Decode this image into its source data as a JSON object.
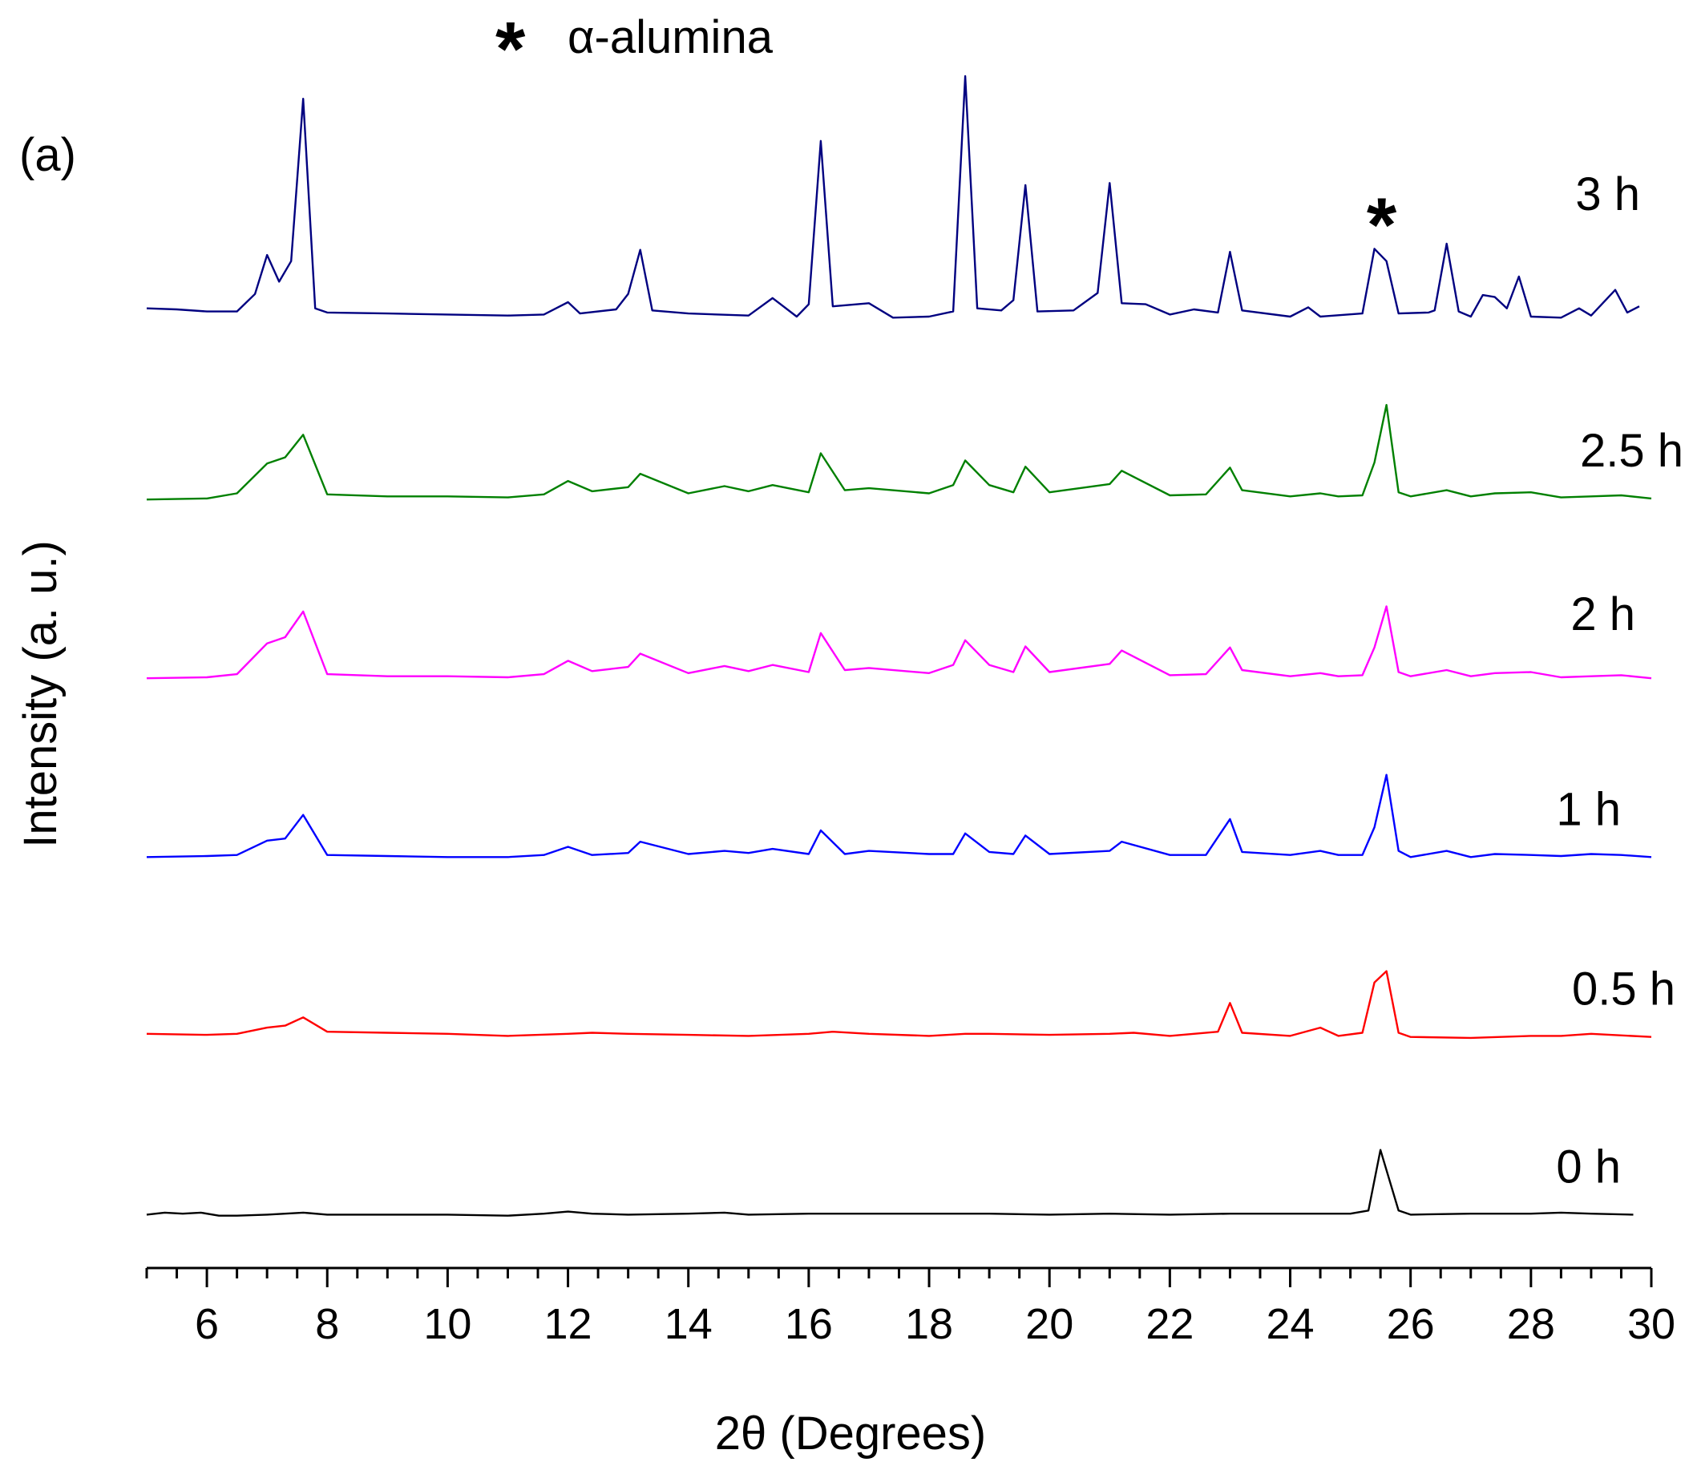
{
  "chart_data": {
    "type": "line",
    "panel_label": "(a)",
    "legend_note": "α-alumina",
    "legend_symbol": "*",
    "xlabel": "2θ (Degrees)",
    "ylabel": "Intensity (a. u.)",
    "xlim": [
      5,
      30
    ],
    "ylim": [
      0,
      118
    ],
    "y_ticks_shown": false,
    "x_ticks": [
      6,
      8,
      10,
      12,
      14,
      16,
      18,
      20,
      22,
      24,
      26,
      28,
      30
    ],
    "x_minor_step": 0.5,
    "peak_marker": {
      "symbol": "*",
      "x": 25.6,
      "y": 96.3,
      "series": "3 h"
    },
    "series": [
      {
        "name": "0 h",
        "color": "#000000",
        "x_end": 29.7,
        "points": [
          [
            5,
            0.2
          ],
          [
            5.3,
            0.4
          ],
          [
            5.6,
            0.3
          ],
          [
            5.9,
            0.4
          ],
          [
            6.2,
            0.1
          ],
          [
            6.5,
            0.1
          ],
          [
            7,
            0.2
          ],
          [
            7.6,
            0.4
          ],
          [
            8,
            0.2
          ],
          [
            9,
            0.2
          ],
          [
            10,
            0.2
          ],
          [
            11,
            0.1
          ],
          [
            11.6,
            0.3
          ],
          [
            12,
            0.5
          ],
          [
            12.4,
            0.3
          ],
          [
            13,
            0.2
          ],
          [
            14,
            0.3
          ],
          [
            14.6,
            0.4
          ],
          [
            15,
            0.2
          ],
          [
            16,
            0.3
          ],
          [
            17,
            0.3
          ],
          [
            18,
            0.3
          ],
          [
            19,
            0.3
          ],
          [
            20,
            0.2
          ],
          [
            21,
            0.3
          ],
          [
            22,
            0.2
          ],
          [
            23,
            0.3
          ],
          [
            24,
            0.3
          ],
          [
            25,
            0.3
          ],
          [
            25.3,
            0.6
          ],
          [
            25.5,
            6.5
          ],
          [
            25.8,
            0.6
          ],
          [
            26,
            0.2
          ],
          [
            27,
            0.3
          ],
          [
            28,
            0.3
          ],
          [
            28.5,
            0.4
          ],
          [
            29,
            0.3
          ],
          [
            29.7,
            0.2
          ]
        ]
      },
      {
        "name": "0.5 h",
        "color": "#ff0000",
        "x_end": 30,
        "points": [
          [
            5,
            17.8
          ],
          [
            6,
            17.7
          ],
          [
            6.5,
            17.8
          ],
          [
            7,
            18.4
          ],
          [
            7.3,
            18.6
          ],
          [
            7.6,
            19.4
          ],
          [
            8,
            18.0
          ],
          [
            9,
            17.9
          ],
          [
            10,
            17.8
          ],
          [
            11,
            17.6
          ],
          [
            12,
            17.8
          ],
          [
            12.4,
            17.9
          ],
          [
            13,
            17.8
          ],
          [
            14,
            17.7
          ],
          [
            15,
            17.6
          ],
          [
            16,
            17.8
          ],
          [
            16.4,
            18.0
          ],
          [
            17,
            17.8
          ],
          [
            18,
            17.6
          ],
          [
            18.6,
            17.8
          ],
          [
            19,
            17.8
          ],
          [
            20,
            17.7
          ],
          [
            21,
            17.8
          ],
          [
            21.4,
            17.9
          ],
          [
            22,
            17.6
          ],
          [
            22.8,
            18.0
          ],
          [
            23,
            20.8
          ],
          [
            23.2,
            17.9
          ],
          [
            24,
            17.6
          ],
          [
            24.5,
            18.4
          ],
          [
            24.8,
            17.6
          ],
          [
            25.2,
            17.9
          ],
          [
            25.4,
            22.8
          ],
          [
            25.6,
            23.9
          ],
          [
            25.8,
            17.9
          ],
          [
            26,
            17.5
          ],
          [
            27,
            17.4
          ],
          [
            28,
            17.6
          ],
          [
            28.5,
            17.6
          ],
          [
            29,
            17.8
          ],
          [
            30,
            17.5
          ]
        ]
      },
      {
        "name": "1 h",
        "color": "#0000ff",
        "x_end": 30,
        "points": [
          [
            5,
            35.0
          ],
          [
            6,
            35.1
          ],
          [
            6.5,
            35.2
          ],
          [
            7,
            36.6
          ],
          [
            7.3,
            36.8
          ],
          [
            7.6,
            39.1
          ],
          [
            8,
            35.2
          ],
          [
            9,
            35.1
          ],
          [
            10,
            35.0
          ],
          [
            11,
            35.0
          ],
          [
            11.6,
            35.2
          ],
          [
            12,
            36.0
          ],
          [
            12.4,
            35.2
          ],
          [
            13,
            35.4
          ],
          [
            13.2,
            36.5
          ],
          [
            14,
            35.3
          ],
          [
            14.6,
            35.6
          ],
          [
            15,
            35.4
          ],
          [
            15.4,
            35.8
          ],
          [
            16,
            35.3
          ],
          [
            16.2,
            37.6
          ],
          [
            16.6,
            35.3
          ],
          [
            17,
            35.6
          ],
          [
            18,
            35.3
          ],
          [
            18.4,
            35.3
          ],
          [
            18.6,
            37.3
          ],
          [
            19,
            35.5
          ],
          [
            19.4,
            35.3
          ],
          [
            19.6,
            37.1
          ],
          [
            20,
            35.3
          ],
          [
            21,
            35.6
          ],
          [
            21.2,
            36.5
          ],
          [
            22,
            35.2
          ],
          [
            22.6,
            35.2
          ],
          [
            23,
            38.7
          ],
          [
            23.2,
            35.5
          ],
          [
            24,
            35.2
          ],
          [
            24.5,
            35.6
          ],
          [
            24.8,
            35.2
          ],
          [
            25.2,
            35.2
          ],
          [
            25.4,
            37.9
          ],
          [
            25.6,
            43.0
          ],
          [
            25.8,
            35.6
          ],
          [
            26,
            35.0
          ],
          [
            26.6,
            35.6
          ],
          [
            27,
            35.0
          ],
          [
            27.4,
            35.3
          ],
          [
            28,
            35.2
          ],
          [
            28.5,
            35.1
          ],
          [
            29,
            35.3
          ],
          [
            29.5,
            35.2
          ],
          [
            30,
            35.0
          ]
        ]
      },
      {
        "name": "2 h",
        "color": "#ff00ff",
        "x_end": 30,
        "points": [
          [
            5,
            52.4
          ],
          [
            6,
            52.5
          ],
          [
            6.5,
            52.8
          ],
          [
            7,
            55.8
          ],
          [
            7.3,
            56.4
          ],
          [
            7.6,
            58.9
          ],
          [
            8,
            52.8
          ],
          [
            9,
            52.6
          ],
          [
            10,
            52.6
          ],
          [
            11,
            52.5
          ],
          [
            11.6,
            52.8
          ],
          [
            12,
            54.1
          ],
          [
            12.4,
            53.1
          ],
          [
            13,
            53.5
          ],
          [
            13.2,
            54.8
          ],
          [
            14,
            52.9
          ],
          [
            14.6,
            53.6
          ],
          [
            15,
            53.1
          ],
          [
            15.4,
            53.7
          ],
          [
            16,
            53.0
          ],
          [
            16.2,
            56.8
          ],
          [
            16.6,
            53.2
          ],
          [
            17,
            53.4
          ],
          [
            18,
            52.9
          ],
          [
            18.4,
            53.7
          ],
          [
            18.6,
            56.1
          ],
          [
            19,
            53.7
          ],
          [
            19.4,
            53.0
          ],
          [
            19.6,
            55.5
          ],
          [
            20,
            53.0
          ],
          [
            21,
            53.8
          ],
          [
            21.2,
            55.1
          ],
          [
            22,
            52.7
          ],
          [
            22.6,
            52.8
          ],
          [
            23,
            55.4
          ],
          [
            23.2,
            53.2
          ],
          [
            24,
            52.6
          ],
          [
            24.5,
            52.9
          ],
          [
            24.8,
            52.6
          ],
          [
            25.2,
            52.7
          ],
          [
            25.4,
            55.4
          ],
          [
            25.6,
            59.4
          ],
          [
            25.8,
            53.0
          ],
          [
            26,
            52.6
          ],
          [
            26.6,
            53.2
          ],
          [
            27,
            52.6
          ],
          [
            27.4,
            52.9
          ],
          [
            28,
            53.0
          ],
          [
            28.5,
            52.5
          ],
          [
            29,
            52.6
          ],
          [
            29.5,
            52.7
          ],
          [
            30,
            52.4
          ]
        ]
      },
      {
        "name": "2.5 h",
        "color": "#008000",
        "x_end": 30,
        "points": [
          [
            5,
            69.8
          ],
          [
            6,
            69.9
          ],
          [
            6.5,
            70.4
          ],
          [
            7,
            73.3
          ],
          [
            7.3,
            73.9
          ],
          [
            7.6,
            76.1
          ],
          [
            8,
            70.3
          ],
          [
            9,
            70.1
          ],
          [
            10,
            70.1
          ],
          [
            11,
            70.0
          ],
          [
            11.6,
            70.3
          ],
          [
            12,
            71.6
          ],
          [
            12.4,
            70.6
          ],
          [
            13,
            71.0
          ],
          [
            13.2,
            72.3
          ],
          [
            14,
            70.4
          ],
          [
            14.6,
            71.1
          ],
          [
            15,
            70.6
          ],
          [
            15.4,
            71.2
          ],
          [
            16,
            70.5
          ],
          [
            16.2,
            74.3
          ],
          [
            16.6,
            70.7
          ],
          [
            17,
            70.9
          ],
          [
            18,
            70.4
          ],
          [
            18.4,
            71.2
          ],
          [
            18.6,
            73.6
          ],
          [
            19,
            71.2
          ],
          [
            19.4,
            70.5
          ],
          [
            19.6,
            73.0
          ],
          [
            20,
            70.5
          ],
          [
            21,
            71.3
          ],
          [
            21.2,
            72.6
          ],
          [
            22,
            70.2
          ],
          [
            22.6,
            70.3
          ],
          [
            23,
            72.9
          ],
          [
            23.2,
            70.7
          ],
          [
            24,
            70.1
          ],
          [
            24.5,
            70.4
          ],
          [
            24.8,
            70.1
          ],
          [
            25.2,
            70.2
          ],
          [
            25.4,
            73.4
          ],
          [
            25.6,
            79.0
          ],
          [
            25.8,
            70.5
          ],
          [
            26,
            70.1
          ],
          [
            26.6,
            70.7
          ],
          [
            27,
            70.1
          ],
          [
            27.4,
            70.4
          ],
          [
            28,
            70.5
          ],
          [
            28.5,
            70.0
          ],
          [
            29,
            70.1
          ],
          [
            29.5,
            70.2
          ],
          [
            30,
            69.9
          ]
        ]
      },
      {
        "name": "3 h",
        "color": "#000080",
        "x_end": 29.8,
        "points": [
          [
            5,
            88.4
          ],
          [
            5.5,
            88.3
          ],
          [
            6,
            88.1
          ],
          [
            6.5,
            88.1
          ],
          [
            6.8,
            89.8
          ],
          [
            7,
            93.6
          ],
          [
            7.2,
            91.0
          ],
          [
            7.4,
            93.0
          ],
          [
            7.6,
            108.8
          ],
          [
            7.8,
            88.4
          ],
          [
            8,
            88.0
          ],
          [
            9,
            87.9
          ],
          [
            10,
            87.8
          ],
          [
            11,
            87.7
          ],
          [
            11.6,
            87.8
          ],
          [
            12,
            89.0
          ],
          [
            12.2,
            87.9
          ],
          [
            12.8,
            88.3
          ],
          [
            13.0,
            89.8
          ],
          [
            13.2,
            94.1
          ],
          [
            13.4,
            88.2
          ],
          [
            14,
            87.9
          ],
          [
            15,
            87.7
          ],
          [
            15.4,
            89.4
          ],
          [
            15.8,
            87.6
          ],
          [
            16.0,
            88.8
          ],
          [
            16.2,
            104.7
          ],
          [
            16.4,
            88.6
          ],
          [
            17,
            88.9
          ],
          [
            17.4,
            87.5
          ],
          [
            18,
            87.6
          ],
          [
            18.4,
            88.1
          ],
          [
            18.6,
            111.0
          ],
          [
            18.8,
            88.4
          ],
          [
            19.2,
            88.2
          ],
          [
            19.4,
            89.2
          ],
          [
            19.6,
            100.4
          ],
          [
            19.8,
            88.1
          ],
          [
            20.4,
            88.2
          ],
          [
            20.8,
            89.9
          ],
          [
            21.0,
            100.6
          ],
          [
            21.2,
            88.9
          ],
          [
            21.6,
            88.8
          ],
          [
            22,
            87.8
          ],
          [
            22.4,
            88.3
          ],
          [
            22.8,
            88.0
          ],
          [
            23.0,
            93.9
          ],
          [
            23.2,
            88.2
          ],
          [
            24,
            87.6
          ],
          [
            24.3,
            88.5
          ],
          [
            24.5,
            87.6
          ],
          [
            25.2,
            87.9
          ],
          [
            25.4,
            94.2
          ],
          [
            25.6,
            93.0
          ],
          [
            25.8,
            87.9
          ],
          [
            26.3,
            88.0
          ],
          [
            26.4,
            88.2
          ],
          [
            26.6,
            94.7
          ],
          [
            26.8,
            88.1
          ],
          [
            27,
            87.6
          ],
          [
            27.2,
            89.7
          ],
          [
            27.4,
            89.5
          ],
          [
            27.6,
            88.4
          ],
          [
            27.8,
            91.5
          ],
          [
            28,
            87.6
          ],
          [
            28.5,
            87.5
          ],
          [
            28.8,
            88.4
          ],
          [
            29,
            87.7
          ],
          [
            29.4,
            90.2
          ],
          [
            29.6,
            88.0
          ],
          [
            29.8,
            88.6
          ]
        ]
      }
    ]
  }
}
